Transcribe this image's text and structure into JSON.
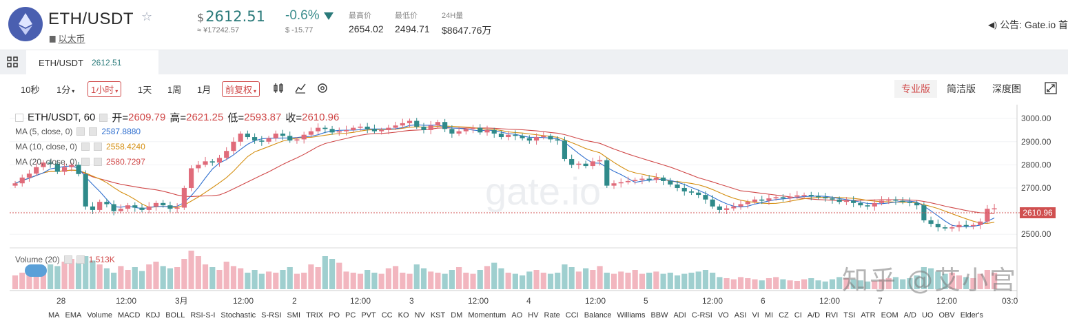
{
  "header": {
    "pair": "ETH/USDT",
    "coin_name": "以太币",
    "price_currency": "$",
    "price": "2612.51",
    "price_cny": "≈ ¥17242.57",
    "change_pct": "-0.6%",
    "change_abs": "$ -15.77",
    "high_label": "最高价",
    "high": "2654.02",
    "low_label": "最低价",
    "low": "2494.71",
    "vol_label": "24H量",
    "vol": "$8647.76万",
    "announce": "公告: Gate.io 首",
    "colors": {
      "price": "#2a7a7a",
      "down": "#2a7a7a",
      "logo": "#4a5fb0"
    }
  },
  "tabs": {
    "market": "ETH/USDT",
    "market_price": "2612.51"
  },
  "toolbar": {
    "intervals": [
      "10秒",
      "1分",
      "1小时",
      "1天",
      "1周",
      "1月"
    ],
    "selected_interval": "1小时",
    "adjust": "前复权",
    "views": [
      "专业版",
      "简洁版",
      "深度图"
    ],
    "selected_view": "专业版"
  },
  "legend": {
    "title": "ETH/USDT, 60",
    "open_k": "开=",
    "open": "2609.79",
    "high_k": "高=",
    "high": "2621.25",
    "low_k": "低=",
    "low": "2593.87",
    "close_k": "收=",
    "close": "2610.96",
    "ma5_label": "MA (5, close, 0)",
    "ma5": "2587.8880",
    "ma10_label": "MA (10, close, 0)",
    "ma10": "2558.4240",
    "ma20_label": "MA (20, close, 0)",
    "ma20": "2580.7297",
    "volume_label": "Volume (20)",
    "volume": "1.513K"
  },
  "watermark": "gate.io",
  "watermark_zh": "知乎 @艾小宫",
  "chart_data": {
    "type": "candlestick",
    "y_ticks": [
      "3000.00",
      "2900.00",
      "2800.00",
      "2700.00",
      "2600.00",
      "2500.00"
    ],
    "y_range": [
      2450,
      3060
    ],
    "current_price": "2610.96",
    "x_ticks": [
      "28",
      "12:00",
      "3月",
      "12:00",
      "2",
      "12:00",
      "3",
      "12:00",
      "4",
      "12:00",
      "5",
      "12:00",
      "6",
      "12:00",
      "7",
      "12:00",
      "03:0"
    ],
    "colors": {
      "up": "#e06b7a",
      "down": "#2f8a8a",
      "ma5": "#2f6fcf",
      "ma10": "#d48e10",
      "ma20": "#d04848"
    },
    "closes": [
      2720,
      2745,
      2762,
      2790,
      2810,
      2805,
      2770,
      2790,
      2800,
      2760,
      2620,
      2605,
      2640,
      2630,
      2600,
      2610,
      2625,
      2615,
      2605,
      2620,
      2635,
      2625,
      2610,
      2615,
      2700,
      2785,
      2800,
      2815,
      2810,
      2830,
      2860,
      2900,
      2935,
      2920,
      2905,
      2900,
      2915,
      2935,
      2925,
      2905,
      2910,
      2930,
      2945,
      2960,
      2955,
      2940,
      2945,
      2950,
      2960,
      2965,
      2955,
      2945,
      2950,
      2960,
      2970,
      2980,
      2990,
      2965,
      2950,
      2970,
      2985,
      2955,
      2935,
      2945,
      2955,
      2960,
      2940,
      2950,
      2935,
      2920,
      2930,
      2925,
      2915,
      2905,
      2920,
      2925,
      2910,
      2905,
      2825,
      2800,
      2805,
      2795,
      2815,
      2820,
      2710,
      2720,
      2725,
      2730,
      2735,
      2740,
      2735,
      2745,
      2730,
      2715,
      2700,
      2685,
      2680,
      2670,
      2650,
      2620,
      2605,
      2612,
      2620,
      2630,
      2640,
      2650,
      2645,
      2655,
      2660,
      2655,
      2662,
      2668,
      2670,
      2665,
      2660,
      2655,
      2650,
      2640,
      2645,
      2635,
      2625,
      2620,
      2635,
      2645,
      2650,
      2645,
      2640,
      2635,
      2625,
      2560,
      2545,
      2530,
      2525,
      2530,
      2540,
      2535,
      2540,
      2555,
      2610,
      2612
    ],
    "volumes": [
      25,
      30,
      28,
      35,
      40,
      45,
      42,
      50,
      55,
      48,
      60,
      52,
      45,
      38,
      30,
      42,
      35,
      40,
      33,
      45,
      50,
      42,
      38,
      40,
      55,
      70,
      60,
      45,
      40,
      35,
      50,
      42,
      38,
      30,
      35,
      28,
      32,
      30,
      35,
      40,
      28,
      30,
      45,
      40,
      60,
      55,
      48,
      32,
      30,
      28,
      35,
      30,
      28,
      38,
      42,
      30,
      28,
      45,
      38,
      32,
      30,
      28,
      35,
      40,
      30,
      28,
      35,
      42,
      48,
      38,
      30,
      28,
      25,
      32,
      35,
      30,
      28,
      30,
      45,
      40,
      32,
      38,
      35,
      42,
      30,
      28,
      32,
      30,
      35,
      28,
      30,
      32,
      28,
      30,
      25,
      28,
      30,
      32,
      35,
      30,
      22,
      20,
      18,
      22,
      20,
      18,
      16,
      20,
      22,
      18,
      16,
      15,
      18,
      20,
      16,
      14,
      18,
      22,
      20,
      18,
      16,
      14,
      15,
      18,
      20,
      22,
      18,
      20,
      25,
      40,
      38,
      32,
      28,
      30,
      25,
      22,
      20,
      28,
      35,
      30
    ],
    "indicators": [
      "MA",
      "EMA",
      "Volume",
      "MACD",
      "KDJ",
      "BOLL",
      "RSI-S-I",
      "Stochastic",
      "S-RSI",
      "SMI",
      "TRIX",
      "PO",
      "PC",
      "PVT",
      "CC",
      "KO",
      "NV",
      "KST",
      "DM",
      "Momentum",
      "AO",
      "HV",
      "Rate",
      "CCI",
      "Balance",
      "Williams",
      "BBW",
      "ADI",
      "C-RSI",
      "VO",
      "ASI",
      "VI",
      "MI",
      "CZ",
      "CI",
      "A/D",
      "RVI",
      "TSI",
      "ATR",
      "EOM",
      "A/D",
      "UO",
      "OBV",
      "Elder's"
    ]
  }
}
